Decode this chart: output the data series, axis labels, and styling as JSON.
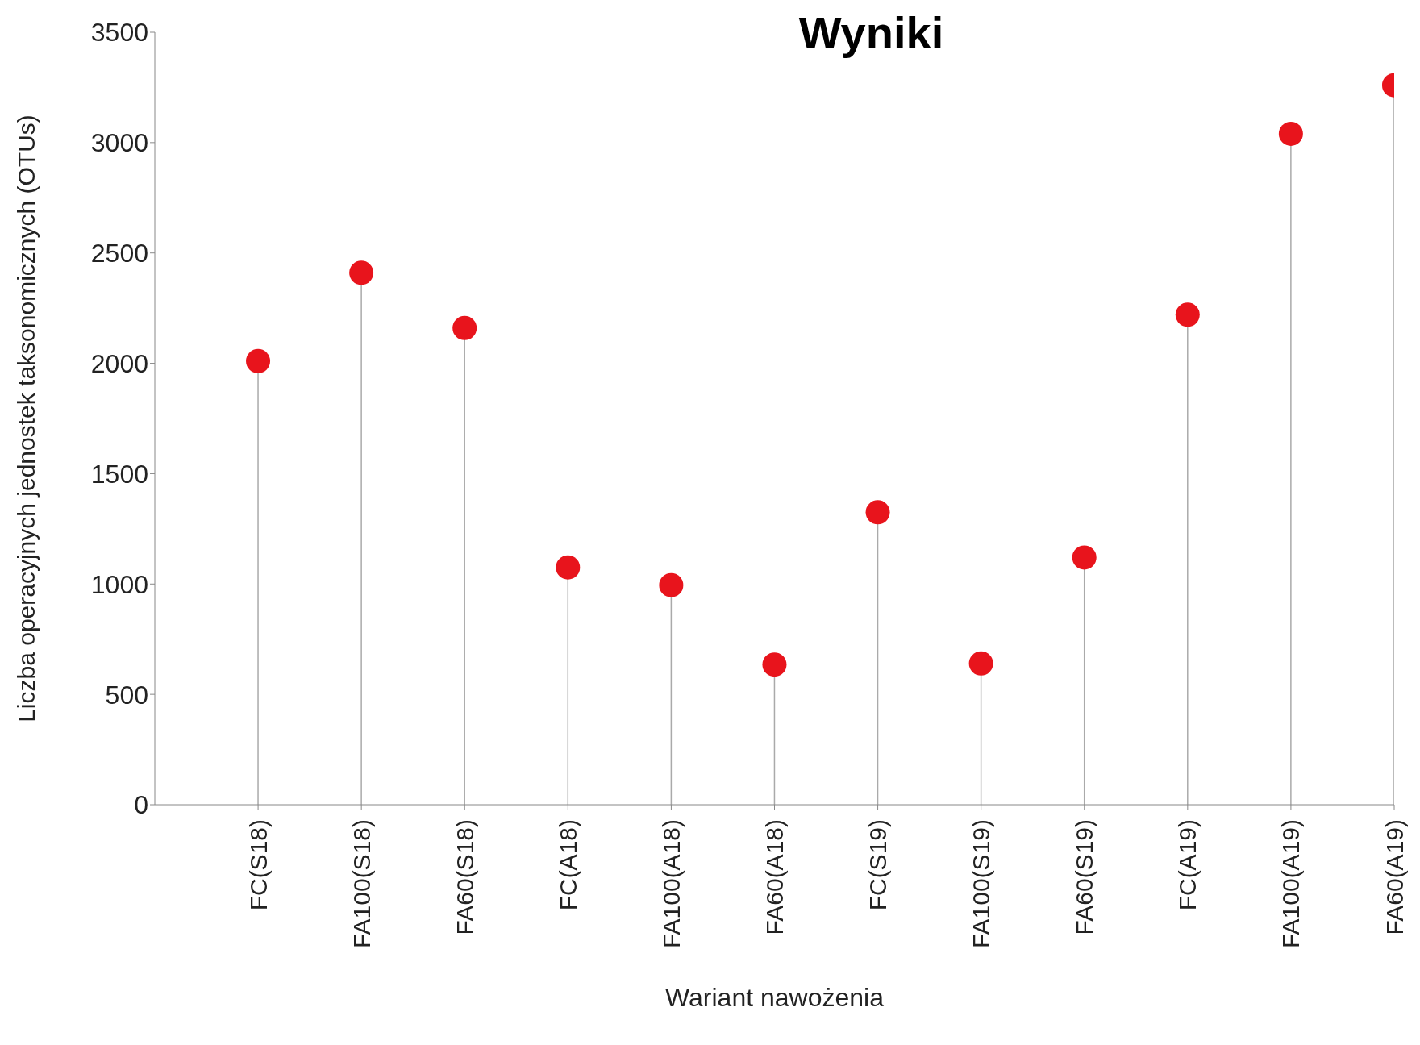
{
  "chart_data": {
    "type": "lollipop",
    "title": "Wyniki",
    "xlabel": "Wariant nawożenia",
    "ylabel": "Liczba operacyjnych jednostek taksonomicznych (OTUs)",
    "categories": [
      "FC(S18)",
      "FA100(S18)",
      "FA60(S18)",
      "FC(A18)",
      "FA100(A18)",
      "FA60(A18)",
      "FC(S19)",
      "FA100(S19)",
      "FA60(S19)",
      "FC(A19)",
      "FA100(A19)",
      "FA60(A19)"
    ],
    "values": [
      2010,
      2410,
      2160,
      1075,
      995,
      635,
      1325,
      640,
      1120,
      2220,
      3040,
      3260
    ],
    "color": "#e8141c",
    "ylim": [
      0,
      3500
    ],
    "yticks": [
      0,
      500,
      1000,
      1500,
      2000,
      2500,
      3000,
      3500
    ],
    "marker": "circle"
  }
}
